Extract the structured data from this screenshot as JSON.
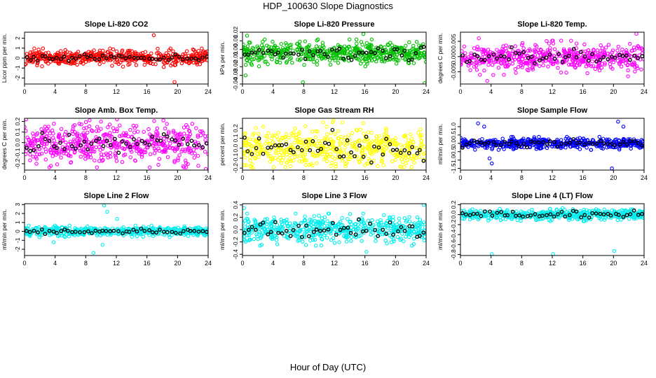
{
  "figure": {
    "title": "HDP_100630  Slope Diagnostics",
    "xlabel": "Hour of Day (UTC)"
  },
  "chart_data": [
    {
      "type": "scatter",
      "title": "Slope Li-820 CO2",
      "ylabel": "Licor ppm per min.",
      "xlim": [
        0,
        24
      ],
      "xticks": [
        0,
        4,
        8,
        12,
        16,
        20,
        24
      ],
      "ylim": [
        -2.6,
        2.6
      ],
      "yticks": [
        -2,
        -1,
        0,
        1,
        2
      ],
      "color": "#ff0000",
      "center": 0.05,
      "spread": 0.35,
      "bias_spread": 0.15,
      "outliers": [
        {
          "x": 16.9,
          "y": 2.3
        },
        {
          "x": 19.6,
          "y": -2.4
        },
        {
          "x": 18.2,
          "y": -0.9
        },
        {
          "x": 11.2,
          "y": 0.5
        }
      ]
    },
    {
      "type": "scatter",
      "title": "Slope Li-820 Pressure",
      "ylabel": "kPa per min.",
      "xlim": [
        0,
        24
      ],
      "xticks": [
        0,
        4,
        8,
        12,
        16,
        20,
        24
      ],
      "ylim": [
        -0.04,
        0.02
      ],
      "yticks": [
        -0.04,
        -0.03,
        -0.02,
        -0.01,
        0.0,
        0.01,
        0.02
      ],
      "color": "#00c000",
      "center": -0.004,
      "spread": 0.006,
      "bias_spread": 0.004,
      "outliers": [
        {
          "x": 0.4,
          "y": -0.03
        },
        {
          "x": 7.9,
          "y": -0.038
        },
        {
          "x": 15.8,
          "y": 0.018
        },
        {
          "x": 23.8,
          "y": -0.039
        },
        {
          "x": 0.6,
          "y": 0.016
        }
      ]
    },
    {
      "type": "scatter",
      "title": "Slope Li-820 Temp.",
      "ylabel": "degrees C per min.",
      "xlim": [
        0,
        24
      ],
      "xticks": [
        0,
        4,
        8,
        12,
        16,
        20,
        24
      ],
      "ylim": [
        -0.009,
        0.008
      ],
      "yticks": [
        -0.005,
        0.0,
        0.005
      ],
      "color": "#ff00ff",
      "center": -0.0005,
      "spread": 0.0022,
      "bias_spread": 0.0012,
      "outliers": [
        {
          "x": 2.4,
          "y": 0.006
        },
        {
          "x": 3.5,
          "y": -0.008
        },
        {
          "x": 23.0,
          "y": 0.0075
        },
        {
          "x": 21.9,
          "y": -0.0065
        }
      ]
    },
    {
      "type": "scatter",
      "title": "Slope Amb. Box Temp.",
      "ylabel": "degrees C per min.",
      "xlim": [
        0,
        24
      ],
      "xticks": [
        0,
        4,
        8,
        12,
        16,
        20,
        24
      ],
      "ylim": [
        -0.26,
        0.23
      ],
      "yticks": [
        -0.2,
        -0.1,
        0.0,
        0.1,
        0.2
      ],
      "color": "#ff00ff",
      "center": 0.0,
      "spread": 0.09,
      "bias_spread": 0.05,
      "outliers": [
        {
          "x": 0.2,
          "y": 0.22
        },
        {
          "x": 23.7,
          "y": -0.25
        },
        {
          "x": 17.5,
          "y": -0.21
        }
      ]
    },
    {
      "type": "scatter",
      "title": "Slope Gas Stream RH",
      "ylabel": "percent per min.",
      "xlim": [
        0,
        24
      ],
      "xticks": [
        0,
        4,
        8,
        12,
        16,
        20,
        24
      ],
      "ylim": [
        -0.22,
        0.3
      ],
      "yticks": [
        -0.2,
        -0.1,
        0.0,
        0.1,
        0.2
      ],
      "color": "#ffff00",
      "center": 0.0,
      "spread": 0.1,
      "bias_spread": 0.08,
      "outliers": [
        {
          "x": 11.9,
          "y": 0.28
        },
        {
          "x": 8.2,
          "y": 0.22
        }
      ]
    },
    {
      "type": "scatter",
      "title": "Slope Sample Flow",
      "ylabel": "ml/min per min.",
      "xlim": [
        0,
        24
      ],
      "xticks": [
        0,
        4,
        8,
        12,
        16,
        20,
        24
      ],
      "ylim": [
        -1.6,
        1.5
      ],
      "yticks": [
        -1.5,
        -1.0,
        -0.5,
        0.0,
        0.5,
        1.0
      ],
      "color": "#0000ff",
      "center": 0.0,
      "spread": 0.15,
      "bias_spread": 0.1,
      "outliers": [
        {
          "x": 2.3,
          "y": 1.2
        },
        {
          "x": 3.1,
          "y": 1.0
        },
        {
          "x": 4.1,
          "y": -1.2
        },
        {
          "x": 3.8,
          "y": -0.9
        },
        {
          "x": 20.6,
          "y": 1.3
        },
        {
          "x": 19.8,
          "y": -1.5
        },
        {
          "x": 21.3,
          "y": 1.0
        }
      ]
    },
    {
      "type": "scatter",
      "title": "Slope Line 2 Flow",
      "ylabel": "ml/min per min.",
      "xlim": [
        0,
        24
      ],
      "xticks": [
        0,
        4,
        8,
        12,
        16,
        20,
        24
      ],
      "ylim": [
        -2.7,
        3.1
      ],
      "yticks": [
        -2,
        -1,
        0,
        1,
        2,
        3
      ],
      "color": "#00eeee",
      "center": 0.0,
      "spread": 0.25,
      "bias_spread": 0.1,
      "outliers": [
        {
          "x": 10.4,
          "y": 2.9
        },
        {
          "x": 10.8,
          "y": 2.2
        },
        {
          "x": 9.0,
          "y": -2.4
        },
        {
          "x": 10.2,
          "y": -1.5
        },
        {
          "x": 3.8,
          "y": -1.2
        },
        {
          "x": 12.1,
          "y": 1.4
        }
      ]
    },
    {
      "type": "scatter",
      "title": "Slope Line 3 Flow",
      "ylabel": "ml/min per min.",
      "xlim": [
        0,
        24
      ],
      "xticks": [
        0,
        4,
        8,
        12,
        16,
        20,
        24
      ],
      "ylim": [
        -0.42,
        0.42
      ],
      "yticks": [
        -0.4,
        -0.2,
        0.0,
        0.2,
        0.4
      ],
      "color": "#00eeee",
      "center": 0.0,
      "spread": 0.1,
      "bias_spread": 0.07,
      "outliers": [
        {
          "x": 23.7,
          "y": 0.4
        },
        {
          "x": 0.2,
          "y": 0.35
        },
        {
          "x": 16.2,
          "y": -0.36
        }
      ]
    },
    {
      "type": "scatter",
      "title": "Slope Line 4 (LT) Flow",
      "ylabel": "ml/min per min.",
      "xlim": [
        0,
        24
      ],
      "xticks": [
        0,
        4,
        8,
        12,
        16,
        20,
        24
      ],
      "ylim": [
        -0.82,
        0.22
      ],
      "yticks": [
        -0.8,
        -0.6,
        -0.4,
        -0.2,
        0.0,
        0.2
      ],
      "color": "#00eeee",
      "center": 0.0,
      "spread": 0.05,
      "bias_spread": 0.03,
      "outliers": [
        {
          "x": 4.1,
          "y": -0.79
        },
        {
          "x": 12.1,
          "y": -0.79
        },
        {
          "x": 20.1,
          "y": -0.73
        }
      ]
    }
  ]
}
